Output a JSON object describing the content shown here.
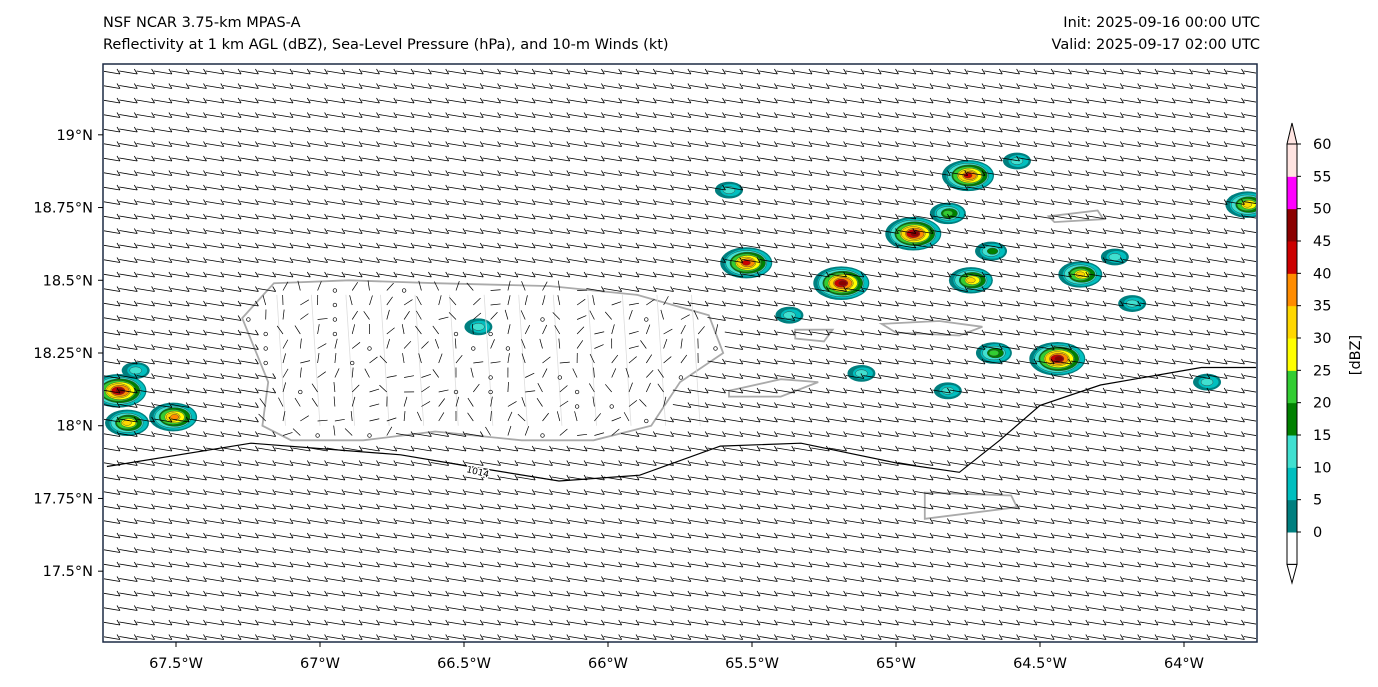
{
  "header": {
    "title_line1": "NSF NCAR 3.75-km MPAS-A",
    "title_line2": "Reflectivity at 1 km AGL (dBZ), Sea-Level Pressure (hPa), and 10-m Winds (kt)",
    "init": "Init: 2025-09-16 00:00 UTC",
    "valid": "Valid: 2025-09-17 02:00 UTC"
  },
  "chart_data": {
    "type": "map",
    "extent": {
      "lon": [
        -67.75,
        -63.75
      ],
      "lat": [
        17.26,
        19.24
      ]
    },
    "x_ticks": [
      {
        "value": -67.5,
        "label": "67.5°W"
      },
      {
        "value": -67,
        "label": "67°W"
      },
      {
        "value": -66.5,
        "label": "66.5°W"
      },
      {
        "value": -66,
        "label": "66°W"
      },
      {
        "value": -65.5,
        "label": "65.5°W"
      },
      {
        "value": -65,
        "label": "65°W"
      },
      {
        "value": -64.5,
        "label": "64.5°W"
      },
      {
        "value": -64,
        "label": "64°W"
      }
    ],
    "y_ticks": [
      {
        "value": 19,
        "label": "19°N"
      },
      {
        "value": 18.75,
        "label": "18.75°N"
      },
      {
        "value": 18.5,
        "label": "18.5°N"
      },
      {
        "value": 18.25,
        "label": "18.25°N"
      },
      {
        "value": 18,
        "label": "18°N"
      },
      {
        "value": 17.75,
        "label": "17.75°N"
      },
      {
        "value": 17.5,
        "label": "17.5°N"
      }
    ],
    "isobars": [
      {
        "value": 1014,
        "label": "1014",
        "points": [
          [
            -67.74,
            17.86
          ],
          [
            -67.24,
            17.94
          ],
          [
            -66.72,
            17.9
          ],
          [
            -66.48,
            17.86
          ],
          [
            -66.17,
            17.81
          ],
          [
            -65.89,
            17.83
          ],
          [
            -65.61,
            17.93
          ],
          [
            -65.33,
            17.94
          ],
          [
            -64.99,
            17.87
          ],
          [
            -64.78,
            17.84
          ],
          [
            -64.64,
            17.95
          ],
          [
            -64.5,
            18.07
          ],
          [
            -64.29,
            18.14
          ],
          [
            -63.94,
            18.2
          ],
          [
            -63.75,
            18.2
          ]
        ]
      }
    ],
    "reflectivity_cells": [
      {
        "lon": -67.7,
        "lat": 18.12,
        "max_dbz": 45
      },
      {
        "lon": -67.67,
        "lat": 18.01,
        "max_dbz": 30
      },
      {
        "lon": -67.51,
        "lat": 18.03,
        "max_dbz": 35
      },
      {
        "lon": -67.64,
        "lat": 18.19,
        "max_dbz": 10
      },
      {
        "lon": -66.45,
        "lat": 18.34,
        "max_dbz": 10
      },
      {
        "lon": -65.52,
        "lat": 18.56,
        "max_dbz": 40
      },
      {
        "lon": -65.58,
        "lat": 18.81,
        "max_dbz": 10
      },
      {
        "lon": -65.19,
        "lat": 18.49,
        "max_dbz": 45
      },
      {
        "lon": -65.37,
        "lat": 18.38,
        "max_dbz": 10
      },
      {
        "lon": -64.75,
        "lat": 18.86,
        "max_dbz": 40
      },
      {
        "lon": -64.58,
        "lat": 18.91,
        "max_dbz": 10
      },
      {
        "lon": -64.94,
        "lat": 18.66,
        "max_dbz": 45
      },
      {
        "lon": -64.82,
        "lat": 18.73,
        "max_dbz": 20
      },
      {
        "lon": -64.67,
        "lat": 18.6,
        "max_dbz": 15
      },
      {
        "lon": -64.74,
        "lat": 18.5,
        "max_dbz": 30
      },
      {
        "lon": -64.66,
        "lat": 18.25,
        "max_dbz": 20
      },
      {
        "lon": -64.44,
        "lat": 18.23,
        "max_dbz": 45
      },
      {
        "lon": -64.36,
        "lat": 18.52,
        "max_dbz": 30
      },
      {
        "lon": -64.24,
        "lat": 18.58,
        "max_dbz": 10
      },
      {
        "lon": -64.18,
        "lat": 18.42,
        "max_dbz": 10
      },
      {
        "lon": -65.12,
        "lat": 18.18,
        "max_dbz": 10
      },
      {
        "lon": -64.82,
        "lat": 18.12,
        "max_dbz": 10
      },
      {
        "lon": -63.92,
        "lat": 18.15,
        "max_dbz": 10
      },
      {
        "lon": -63.78,
        "lat": 18.76,
        "max_dbz": 30
      }
    ],
    "winds": {
      "prevailing_from": "ENE",
      "typical_speed_kt": 15,
      "over_land": "light and variable"
    },
    "colorbar": {
      "label": "[dBZ]",
      "levels": [
        0,
        5,
        10,
        15,
        20,
        25,
        30,
        35,
        40,
        45,
        50,
        55,
        60
      ],
      "tick_labels": [
        "0",
        "5",
        "10",
        "15",
        "20",
        "25",
        "30",
        "35",
        "40",
        "45",
        "50",
        "55",
        "60"
      ],
      "colors": [
        "#007f7f",
        "#00bfbf",
        "#40e0d0",
        "#008000",
        "#32cd32",
        "#ffff00",
        "#ffd700",
        "#ff8c00",
        "#cc0000",
        "#8b0000",
        "#ff00ff",
        "#ffe4e1"
      ]
    },
    "coastlines": {
      "puerto_rico": [
        [
          -67.27,
          18.37
        ],
        [
          -67.16,
          18.49
        ],
        [
          -66.9,
          18.5
        ],
        [
          -66.6,
          18.49
        ],
        [
          -66.2,
          18.48
        ],
        [
          -65.9,
          18.45
        ],
        [
          -65.65,
          18.38
        ],
        [
          -65.6,
          18.25
        ],
        [
          -65.75,
          18.15
        ],
        [
          -65.85,
          18.0
        ],
        [
          -66.05,
          17.95
        ],
        [
          -66.3,
          17.95
        ],
        [
          -66.6,
          17.98
        ],
        [
          -66.85,
          17.95
        ],
        [
          -67.1,
          17.95
        ],
        [
          -67.2,
          18.0
        ],
        [
          -67.18,
          18.15
        ],
        [
          -67.27,
          18.37
        ]
      ],
      "vieques": [
        [
          -65.58,
          18.12
        ],
        [
          -65.4,
          18.16
        ],
        [
          -65.27,
          18.15
        ],
        [
          -65.4,
          18.1
        ],
        [
          -65.58,
          18.1
        ]
      ],
      "culebra": [
        [
          -65.35,
          18.33
        ],
        [
          -65.22,
          18.33
        ],
        [
          -65.25,
          18.29
        ],
        [
          -65.35,
          18.3
        ]
      ],
      "st_thomas_st_john": [
        [
          -65.05,
          18.35
        ],
        [
          -64.85,
          18.36
        ],
        [
          -64.7,
          18.34
        ],
        [
          -64.78,
          18.31
        ],
        [
          -65.0,
          18.32
        ]
      ],
      "st_croix": [
        [
          -64.9,
          17.77
        ],
        [
          -64.6,
          17.76
        ],
        [
          -64.58,
          17.72
        ],
        [
          -64.9,
          17.68
        ]
      ],
      "bvi": [
        [
          -64.47,
          18.72
        ],
        [
          -64.3,
          18.74
        ],
        [
          -64.28,
          18.71
        ],
        [
          -64.45,
          18.7
        ]
      ]
    }
  }
}
